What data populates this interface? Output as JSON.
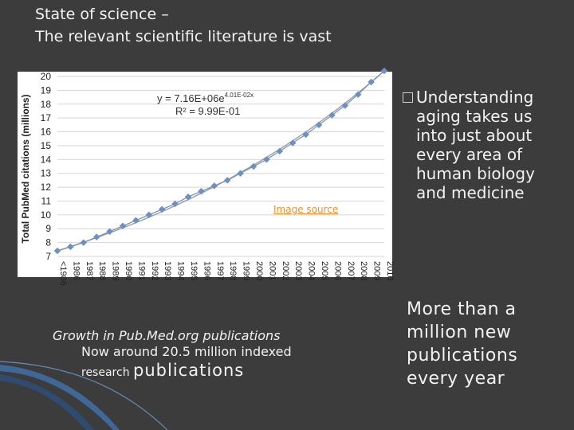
{
  "slide": {
    "title": "State of science –\nThe relevant scientific literature is vast",
    "image_source_label": "Image source",
    "bullet": "Understanding aging takes us into just about every area of human biology and medicine",
    "caption_line1": "Growth in Pub.Med.org publications",
    "caption_line2": "Now around 20.5 million indexed",
    "caption_line3_small": "research",
    "caption_line3_large": "publications",
    "side_note": "More than a million new publications every year"
  },
  "chart_data": {
    "type": "scatter",
    "ylabel": "Total PubMed citations (millions)",
    "equation": "y = 7.16E+06e",
    "equation_exp": "4.01E-02x",
    "r_squared": "R² = 9.99E-01",
    "ylim": [
      7,
      20
    ],
    "yticks": [
      7,
      8,
      9,
      10,
      11,
      12,
      13,
      14,
      15,
      16,
      17,
      18,
      19,
      20
    ],
    "x": [
      "<1986",
      "1986",
      "1987",
      "1988",
      "1989",
      "1990",
      "1991",
      "1992",
      "1993",
      "1994",
      "1995",
      "1996",
      "1997",
      "1998",
      "1999",
      "2000",
      "2001",
      "2002",
      "2003",
      "2004",
      "2005",
      "2006",
      "2007",
      "2008",
      "2009",
      "2010"
    ],
    "values": [
      7.4,
      7.7,
      8.0,
      8.4,
      8.8,
      9.2,
      9.6,
      10.0,
      10.4,
      10.8,
      11.3,
      11.7,
      12.1,
      12.5,
      13.0,
      13.5,
      14.0,
      14.6,
      15.2,
      15.8,
      16.5,
      17.2,
      17.9,
      18.7,
      19.6,
      20.4
    ],
    "colors": {
      "trend": "#a0a0a0",
      "marker": "#6f8fc2",
      "grid": "#d6d6d6"
    }
  }
}
